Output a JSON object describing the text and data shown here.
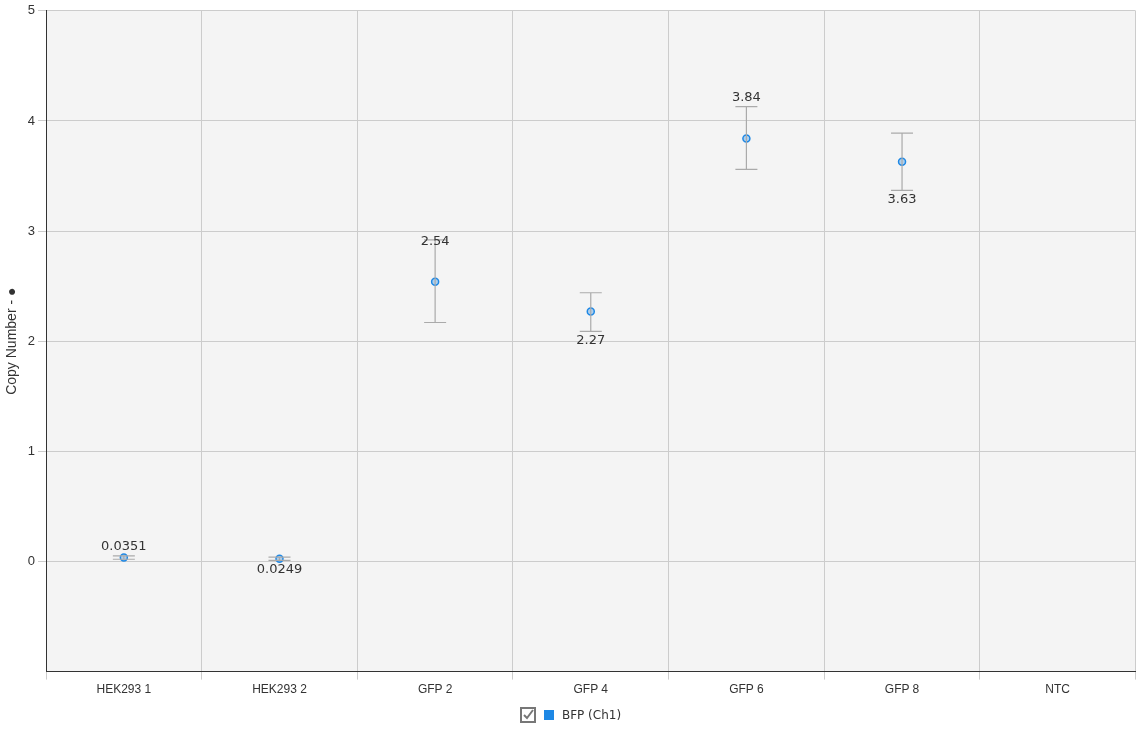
{
  "chart_data": {
    "type": "scatter",
    "ylabel": "Copy Number - ●",
    "categories": [
      "HEK293 1",
      "HEK293 2",
      "GFP 2",
      "GFP 4",
      "GFP 6",
      "GFP 8",
      "NTC"
    ],
    "series": [
      {
        "name": "BFP (Ch1)",
        "color": "#1e88e5",
        "values": [
          0.0351,
          0.0249,
          2.54,
          2.27,
          3.84,
          3.63,
          null
        ],
        "errors": [
          [
            0.02,
            0.05
          ],
          [
            0.01,
            0.04
          ],
          [
            2.17,
            2.92
          ],
          [
            2.09,
            2.44
          ],
          [
            3.56,
            4.13
          ],
          [
            3.37,
            3.89
          ],
          null
        ]
      }
    ],
    "ylim": [
      -1,
      5
    ],
    "yticks": [
      0,
      1,
      2,
      3,
      4,
      5
    ],
    "grid": true,
    "legend": "bottom",
    "marker": "circle",
    "data_labels": true
  }
}
